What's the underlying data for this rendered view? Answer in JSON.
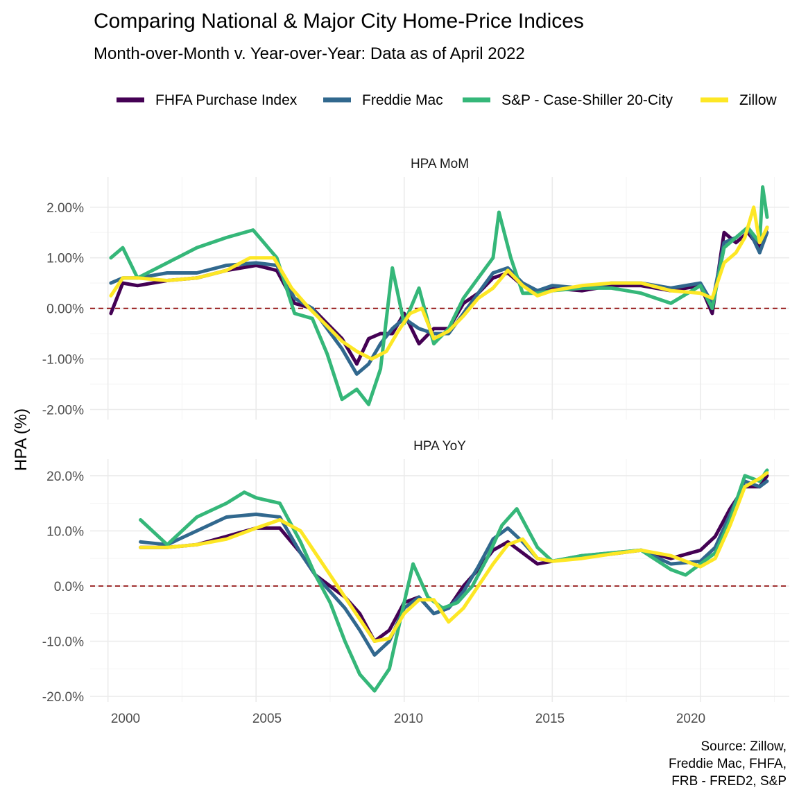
{
  "title": "Comparing National & Major City Home-Price Indices",
  "subtitle": "Month-over-Month v. Year-over-Year:  Data as of April 2022",
  "ylabel": "HPA (%)",
  "caption": [
    "Source: Zillow,",
    "Freddie Mac, FHFA,",
    "FRB - FRED2, S&P"
  ],
  "legend": [
    {
      "name": "FHFA Purchase Index",
      "color": "#440154"
    },
    {
      "name": "Freddie Mac",
      "color": "#31688e"
    },
    {
      "name": "S&P - Case-Shiller 20-City",
      "color": "#35b779"
    },
    {
      "name": "Zillow",
      "color": "#fde725"
    }
  ],
  "x_ticks": [
    "2000",
    "2005",
    "2010",
    "2015",
    "2020"
  ],
  "chart_data": [
    {
      "type": "line",
      "title": "HPA MoM",
      "xlim": [
        1999.4,
        2023.0
      ],
      "ylim": [
        -2.2,
        2.6
      ],
      "y_ticks": [
        {
          "v": 2,
          "label": "2.00%"
        },
        {
          "v": 1,
          "label": "1.00%"
        },
        {
          "v": 0,
          "label": "0.00%"
        },
        {
          "v": -1,
          "label": "-1.00%"
        },
        {
          "v": -2,
          "label": "-2.00%"
        }
      ],
      "reference_line": 0,
      "series": [
        {
          "name": "FHFA Purchase Index",
          "color": "#440154",
          "x": [
            2000.1,
            2000.5,
            2001,
            2002,
            2003,
            2004,
            2005,
            2005.7,
            2006.3,
            2006.9,
            2007.4,
            2007.9,
            2008.4,
            2008.8,
            2009.2,
            2009.6,
            2010,
            2010.5,
            2011,
            2011.5,
            2012,
            2012.5,
            2013,
            2013.5,
            2014,
            2014.5,
            2015,
            2016,
            2017,
            2018,
            2019,
            2020,
            2020.4,
            2020.8,
            2021.2,
            2021.6,
            2022,
            2022.25
          ],
          "y": [
            -0.1,
            0.5,
            0.45,
            0.55,
            0.6,
            0.75,
            0.85,
            0.75,
            0.1,
            0.0,
            -0.3,
            -0.6,
            -1.1,
            -0.6,
            -0.5,
            -0.5,
            -0.1,
            -0.7,
            -0.4,
            -0.4,
            0.1,
            0.3,
            0.6,
            0.7,
            0.45,
            0.3,
            0.4,
            0.35,
            0.45,
            0.45,
            0.35,
            0.45,
            -0.1,
            1.5,
            1.3,
            1.5,
            1.2,
            1.6
          ]
        },
        {
          "name": "Freddie Mac",
          "color": "#31688e",
          "x": [
            2000.1,
            2000.5,
            2001,
            2002,
            2003,
            2004,
            2005,
            2005.7,
            2006.3,
            2006.9,
            2007.4,
            2007.9,
            2008.4,
            2008.8,
            2009.2,
            2009.6,
            2010,
            2010.5,
            2011,
            2011.5,
            2012,
            2012.5,
            2013,
            2013.5,
            2014,
            2014.5,
            2015,
            2016,
            2017,
            2018,
            2019,
            2020,
            2020.4,
            2020.8,
            2021.2,
            2021.6,
            2022,
            2022.25
          ],
          "y": [
            0.5,
            0.6,
            0.6,
            0.7,
            0.7,
            0.85,
            0.9,
            0.85,
            0.2,
            0.0,
            -0.4,
            -0.8,
            -1.3,
            -1.1,
            -0.7,
            -0.4,
            -0.2,
            -0.4,
            -0.5,
            -0.5,
            -0.1,
            0.3,
            0.7,
            0.8,
            0.5,
            0.35,
            0.45,
            0.4,
            0.5,
            0.5,
            0.4,
            0.5,
            0.1,
            1.3,
            1.4,
            1.6,
            1.1,
            1.5
          ]
        },
        {
          "name": "S&P - Case-Shiller 20-City",
          "color": "#35b779",
          "x": [
            2000.1,
            2000.5,
            2001,
            2002,
            2003,
            2004,
            2004.9,
            2005.7,
            2006.3,
            2006.9,
            2007.4,
            2007.9,
            2008.4,
            2008.8,
            2009.2,
            2009.6,
            2010,
            2010.5,
            2011,
            2011.5,
            2012,
            2012.5,
            2013,
            2013.2,
            2013.6,
            2014,
            2014.5,
            2015,
            2016,
            2017,
            2018,
            2019,
            2020,
            2020.4,
            2020.8,
            2021.2,
            2021.6,
            2022,
            2022.1,
            2022.25
          ],
          "y": [
            1.0,
            1.2,
            0.6,
            0.9,
            1.2,
            1.4,
            1.55,
            1.0,
            -0.1,
            -0.2,
            -0.9,
            -1.8,
            -1.6,
            -1.9,
            -1.2,
            0.8,
            -0.3,
            0.4,
            -0.7,
            -0.4,
            0.2,
            0.6,
            1.0,
            1.9,
            1.0,
            0.3,
            0.3,
            0.35,
            0.4,
            0.4,
            0.3,
            0.1,
            0.45,
            0.0,
            1.2,
            1.4,
            1.6,
            1.3,
            2.4,
            1.8
          ]
        },
        {
          "name": "Zillow",
          "color": "#fde725",
          "x": [
            2000.1,
            2000.5,
            2001,
            2002,
            2003,
            2004,
            2004.8,
            2005.6,
            2006.2,
            2006.8,
            2007.4,
            2007.9,
            2008.4,
            2008.9,
            2009.4,
            2009.8,
            2010.2,
            2010.6,
            2011,
            2011.5,
            2012,
            2012.5,
            2013,
            2013.5,
            2014,
            2014.5,
            2015,
            2016,
            2017,
            2018,
            2019,
            2020,
            2020.4,
            2020.8,
            2021.2,
            2021.5,
            2021.8,
            2022,
            2022.25
          ],
          "y": [
            0.25,
            0.6,
            0.6,
            0.55,
            0.6,
            0.75,
            1.0,
            1.0,
            0.4,
            0.0,
            -0.35,
            -0.65,
            -0.85,
            -1.0,
            -0.85,
            -0.45,
            -0.1,
            0.0,
            -0.6,
            -0.45,
            -0.15,
            0.2,
            0.4,
            0.75,
            0.45,
            0.25,
            0.35,
            0.45,
            0.5,
            0.5,
            0.35,
            0.3,
            0.2,
            0.9,
            1.1,
            1.4,
            2.0,
            1.3,
            1.6
          ]
        }
      ]
    },
    {
      "type": "line",
      "title": "HPA YoY",
      "xlim": [
        1999.4,
        2023.0
      ],
      "ylim": [
        -21,
        23
      ],
      "y_ticks": [
        {
          "v": 20,
          "label": "20.0%"
        },
        {
          "v": 10,
          "label": "10.0%"
        },
        {
          "v": 0,
          "label": "0.0%"
        },
        {
          "v": -10,
          "label": "-10.0%"
        },
        {
          "v": -20,
          "label": "-20.0%"
        }
      ],
      "reference_line": 0,
      "series": [
        {
          "name": "FHFA Purchase Index",
          "color": "#440154",
          "x": [
            2001.1,
            2002,
            2003,
            2004,
            2005,
            2005.8,
            2006.5,
            2007,
            2007.5,
            2008,
            2008.5,
            2009,
            2009.5,
            2010,
            2010.5,
            2011,
            2011.5,
            2012,
            2012.5,
            2013,
            2013.5,
            2014,
            2014.5,
            2015,
            2016,
            2017,
            2018,
            2019,
            2020,
            2020.5,
            2021,
            2021.5,
            2022,
            2022.25
          ],
          "y": [
            7,
            7,
            7.5,
            9,
            10.5,
            10.5,
            6,
            2,
            0,
            -2,
            -5,
            -10,
            -8,
            -3,
            -2,
            -5,
            -4,
            0,
            3,
            6.5,
            8,
            6,
            4,
            4.5,
            5.2,
            5.8,
            6.5,
            5,
            6.5,
            9,
            14,
            18,
            18,
            20
          ]
        },
        {
          "name": "Freddie Mac",
          "color": "#31688e",
          "x": [
            2001.1,
            2002,
            2003,
            2004,
            2005,
            2005.8,
            2006.5,
            2007,
            2007.5,
            2008,
            2008.5,
            2009,
            2009.5,
            2010,
            2010.5,
            2011,
            2011.5,
            2012,
            2012.5,
            2013,
            2013.5,
            2014,
            2014.5,
            2015,
            2016,
            2017,
            2018,
            2019,
            2020,
            2020.5,
            2021,
            2021.5,
            2022,
            2022.25
          ],
          "y": [
            8,
            7.5,
            10,
            12.5,
            13,
            12.5,
            6,
            2,
            -1,
            -4,
            -8,
            -12.5,
            -10,
            -4,
            -2,
            -5,
            -4,
            -1,
            3.5,
            8.5,
            10.5,
            8,
            5,
            4.5,
            5.5,
            6,
            6.5,
            4,
            4.5,
            7,
            13,
            19,
            18,
            19
          ]
        },
        {
          "name": "S&P - Case-Shiller 20-City",
          "color": "#35b779",
          "x": [
            2001.1,
            2002,
            2003,
            2004,
            2004.6,
            2005,
            2005.8,
            2006.5,
            2007,
            2007.5,
            2008,
            2008.5,
            2009,
            2009.5,
            2010,
            2010.3,
            2010.8,
            2011.3,
            2011.8,
            2012.3,
            2012.8,
            2013.3,
            2013.8,
            2014.5,
            2015,
            2016,
            2017,
            2018,
            2019,
            2019.5,
            2020,
            2020.5,
            2021,
            2021.5,
            2022,
            2022.25
          ],
          "y": [
            12,
            7.5,
            12.5,
            15,
            17,
            16,
            15,
            8,
            2,
            -3,
            -10,
            -16,
            -19,
            -15,
            -3,
            4,
            -2,
            -4,
            -3,
            0,
            5,
            11,
            14,
            7,
            4.5,
            5.5,
            6,
            6.5,
            3,
            2,
            4,
            6,
            12,
            20,
            19,
            21
          ]
        },
        {
          "name": "Zillow",
          "color": "#fde725",
          "x": [
            2001.1,
            2002,
            2003,
            2004,
            2005,
            2005.8,
            2006.5,
            2007,
            2007.5,
            2008,
            2008.5,
            2009,
            2009.5,
            2010,
            2010.5,
            2011,
            2011.5,
            2012,
            2012.5,
            2013,
            2013.5,
            2014,
            2014.5,
            2015,
            2016,
            2017,
            2018,
            2019,
            2020,
            2020.5,
            2021,
            2021.5,
            2022,
            2022.25
          ],
          "y": [
            7,
            7,
            7.5,
            8.5,
            10.5,
            12,
            10,
            6,
            2,
            -2,
            -6,
            -10,
            -9.5,
            -5,
            -2.5,
            -2.5,
            -6.5,
            -4,
            0,
            4,
            7.5,
            8.5,
            5,
            4.5,
            5,
            5.8,
            6.5,
            5.5,
            3.5,
            5,
            11,
            18,
            19.5,
            20.5
          ]
        }
      ]
    }
  ]
}
